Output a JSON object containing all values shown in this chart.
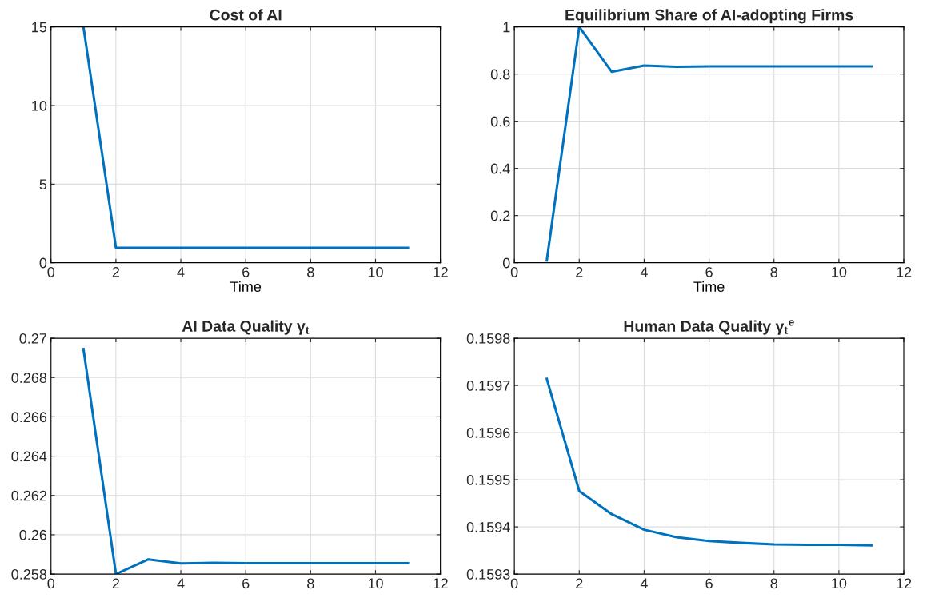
{
  "chart_data": [
    {
      "type": "line",
      "title": "Cost of AI",
      "xlabel": "Time",
      "x": [
        1,
        2,
        3,
        4,
        5,
        6,
        7,
        8,
        9,
        10,
        11
      ],
      "series": [
        {
          "color": "#0072bd",
          "values": [
            15,
            0.95,
            0.95,
            0.95,
            0.95,
            0.95,
            0.95,
            0.95,
            0.95,
            0.95,
            0.95
          ]
        }
      ],
      "xlim": [
        0,
        12
      ],
      "xticks": [
        0,
        2,
        4,
        6,
        8,
        10,
        12
      ],
      "ylim": [
        0,
        15
      ],
      "yticks": [
        0,
        5,
        10,
        15
      ],
      "grid": true
    },
    {
      "type": "line",
      "title": "Equilibrium Share of AI-adopting Firms",
      "xlabel": "Time",
      "x": [
        1,
        2,
        3,
        4,
        5,
        6,
        7,
        8,
        9,
        10,
        11
      ],
      "series": [
        {
          "color": "#0072bd",
          "values": [
            0.01,
            1,
            0.81,
            0.836,
            0.831,
            0.833,
            0.833,
            0.833,
            0.833,
            0.833,
            0.833
          ]
        }
      ],
      "xlim": [
        0,
        12
      ],
      "xticks": [
        0,
        2,
        4,
        6,
        8,
        10,
        12
      ],
      "ylim": [
        0,
        1
      ],
      "yticks": [
        0,
        0.2,
        0.4,
        0.6,
        0.8,
        1
      ],
      "grid": true
    },
    {
      "type": "line",
      "title": "AI Data Quality γ$_{t}$",
      "x": [
        1,
        2,
        3,
        4,
        5,
        6,
        7,
        8,
        9,
        10,
        11
      ],
      "series": [
        {
          "color": "#0072bd",
          "values": [
            0.26945,
            0.258,
            0.25875,
            0.25854,
            0.25857,
            0.25855,
            0.25855,
            0.25855,
            0.25855,
            0.25855,
            0.25855
          ]
        }
      ],
      "xlim": [
        0,
        12
      ],
      "xticks": [
        0,
        2,
        4,
        6,
        8,
        10,
        12
      ],
      "ylim": [
        0.258,
        0.27
      ],
      "yticks": [
        0.258,
        0.26,
        0.262,
        0.264,
        0.266,
        0.268,
        0.27
      ],
      "grid": true
    },
    {
      "type": "line",
      "title": "Human Data Quality γ$_{t}$$^{e}$",
      "x": [
        1,
        2,
        3,
        4,
        5,
        6,
        7,
        8,
        9,
        10,
        11
      ],
      "series": [
        {
          "color": "#0072bd",
          "values": [
            0.159714,
            0.159476,
            0.159427,
            0.159394,
            0.159378,
            0.15937,
            0.159366,
            0.159363,
            0.159362,
            0.159362,
            0.159361
          ]
        }
      ],
      "xlim": [
        0,
        12
      ],
      "xticks": [
        0,
        2,
        4,
        6,
        8,
        10,
        12
      ],
      "ylim": [
        0.1593,
        0.1598
      ],
      "yticks": [
        0.1593,
        0.1594,
        0.1595,
        0.1596,
        0.1597,
        0.1598
      ],
      "grid": true
    }
  ]
}
